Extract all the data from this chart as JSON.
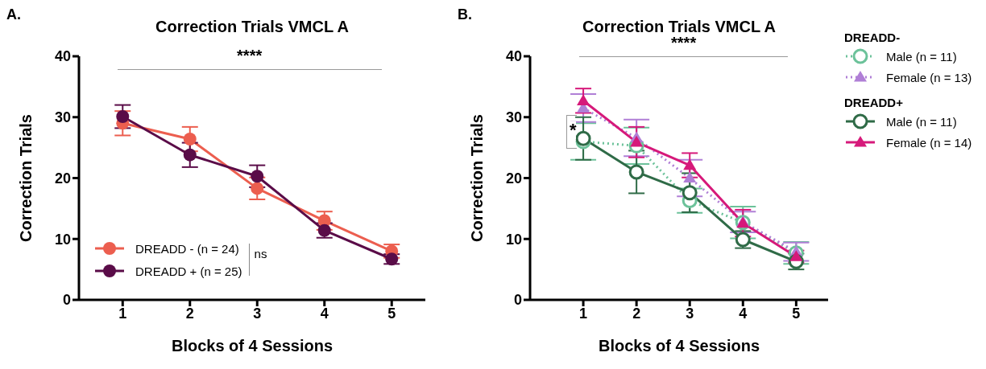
{
  "chart_data": [
    {
      "type": "line",
      "title": "Correction Trials VMCL A",
      "xlabel": "Blocks of 4 Sessions",
      "ylabel": "Correction Trials",
      "x": [
        1,
        2,
        3,
        4,
        5
      ],
      "xlim": [
        0.35,
        5.5
      ],
      "xticks": [
        1,
        2,
        3,
        4,
        5
      ],
      "ylim": [
        0,
        40
      ],
      "yticks": [
        0,
        10,
        20,
        30,
        40
      ],
      "grid": false,
      "legend": "bottom left",
      "marker": "circle",
      "line_style": "solid",
      "annotations": [
        "A.",
        "****",
        "ns"
      ],
      "series": [
        {
          "name": "DREADD - (n = 24)",
          "color": "#ec5e4f",
          "values": [
            29,
            26.4,
            18.3,
            13,
            8
          ],
          "errors": [
            2,
            2,
            1.8,
            1.5,
            1.1
          ]
        },
        {
          "name": "DREADD + (n = 25)",
          "color": "#5a0c48",
          "values": [
            30.1,
            23.8,
            20.3,
            11.4,
            6.7
          ],
          "errors": [
            1.9,
            2,
            1.8,
            1.2,
            0.8
          ]
        }
      ]
    },
    {
      "type": "line",
      "title": "Correction Trials VMCL A",
      "xlabel": "Blocks of 4 Sessions",
      "ylabel": "Correction Trials",
      "x": [
        1,
        2,
        3,
        4,
        5
      ],
      "xlim": [
        0,
        5.6
      ],
      "xticks": [
        1,
        2,
        3,
        4,
        5
      ],
      "ylim": [
        0,
        40
      ],
      "yticks": [
        0,
        10,
        20,
        30,
        40
      ],
      "grid": false,
      "legend": "right",
      "annotations": [
        "B.",
        "****",
        "*",
        "DREADD-",
        "DREADD+"
      ],
      "series": [
        {
          "name": "Male (n = 11)",
          "color": "#6cc29a",
          "marker": "circle",
          "line_style": "dotted",
          "values": [
            26,
            25.3,
            16.3,
            12.7,
            7.7
          ],
          "errors": [
            3,
            3,
            2,
            2.6,
            1.8
          ]
        },
        {
          "name": "Female (n = 13)",
          "color": "#b07fd6",
          "marker": "triangle",
          "line_style": "dotted",
          "values": [
            31.5,
            26.6,
            20,
            12.8,
            7.9
          ],
          "errors": [
            2.3,
            3,
            3,
            1.7,
            1.5
          ]
        },
        {
          "name": "Male (n = 11)",
          "color": "#2f6b47",
          "marker": "circle",
          "line_style": "solid",
          "values": [
            26.5,
            21,
            17.6,
            9.9,
            6.3
          ],
          "errors": [
            3.5,
            3.5,
            3.2,
            1.4,
            1.3
          ]
        },
        {
          "name": "Female (n = 14)",
          "color": "#d6197a",
          "marker": "triangle",
          "line_style": "solid",
          "values": [
            32.7,
            25.9,
            22.1,
            12.6,
            7.1
          ],
          "errors": [
            2,
            2.5,
            2,
            2.2,
            1
          ]
        }
      ]
    }
  ]
}
